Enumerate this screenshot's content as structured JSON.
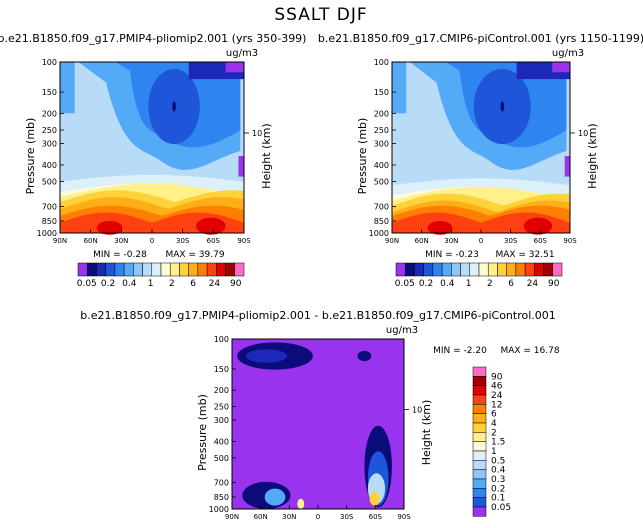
{
  "figure": {
    "title": "SSALT DJF",
    "units": "ug/m3",
    "y_axis_label": "Pressure (mb)",
    "right_axis_label": "Height (km)",
    "right_axis_tick": "10"
  },
  "colors": {
    "levels": [
      "#9933ee",
      "#0b0b7a",
      "#1c28b8",
      "#1f55d8",
      "#2f85f0",
      "#55aaf8",
      "#8fc5f8",
      "#b8dcf8",
      "#dcf0fa",
      "#fbfbd6",
      "#fff08a",
      "#ffd23a",
      "#ffae18",
      "#ff8000",
      "#ff4010",
      "#e00000",
      "#a00000",
      "#ff69c8"
    ]
  },
  "chart_data": [
    {
      "type": "contour",
      "panel": "top-left",
      "title": "b.e21.B1850.f09_g17.PMIP4-pliomip2.001 (yrs 350-399)",
      "units": "ug/m3",
      "ylabel": "Pressure (mb)",
      "right_label": "Height (km)",
      "x_ticks": [
        "90N",
        "60N",
        "30N",
        "0",
        "30S",
        "60S",
        "90S"
      ],
      "y_ticks": [
        "100",
        "150",
        "200",
        "250",
        "300",
        "400",
        "500",
        "700",
        "850",
        "1000"
      ],
      "right_ticks": [
        "10"
      ],
      "min_label": "MIN = -0.28",
      "max_label": "MAX = 39.79",
      "min": -0.28,
      "max": 39.79,
      "colorbar_labels": [
        "0.05",
        "0.2",
        "0.4",
        "1",
        "2",
        "6",
        "24",
        "90"
      ]
    },
    {
      "type": "contour",
      "panel": "top-right",
      "title": "b.e21.B1850.f09_g17.CMIP6-piControl.001 (yrs 1150-1199)",
      "units": "ug/m3",
      "ylabel": "Pressure (mb)",
      "right_label": "Height (km)",
      "x_ticks": [
        "90N",
        "60N",
        "30N",
        "0",
        "30S",
        "60S",
        "90S"
      ],
      "y_ticks": [
        "100",
        "150",
        "200",
        "250",
        "300",
        "400",
        "500",
        "700",
        "850",
        "1000"
      ],
      "right_ticks": [
        "10"
      ],
      "min_label": "MIN = -0.23",
      "max_label": "MAX = 32.51",
      "min": -0.23,
      "max": 32.51,
      "colorbar_labels": [
        "0.05",
        "0.2",
        "0.4",
        "1",
        "2",
        "6",
        "24",
        "90"
      ]
    },
    {
      "type": "contour",
      "panel": "bottom-difference",
      "title": "b.e21.B1850.f09_g17.PMIP4-pliomip2.001 - b.e21.B1850.f09_g17.CMIP6-piControl.001",
      "units": "ug/m3",
      "ylabel": "Pressure (mb)",
      "right_label": "Height (km)",
      "x_ticks": [
        "90N",
        "60N",
        "30N",
        "0",
        "30S",
        "60S",
        "90S"
      ],
      "y_ticks": [
        "100",
        "150",
        "200",
        "250",
        "300",
        "400",
        "500",
        "700",
        "850",
        "1000"
      ],
      "right_ticks": [
        "10"
      ],
      "min_label": "MIN = -2.20",
      "max_label": "MAX = 16.78",
      "min": -2.2,
      "max": 16.78,
      "colorbar_labels": [
        "90",
        "46",
        "24",
        "12",
        "6",
        "4",
        "2",
        "1.5",
        "1",
        "0.5",
        "0.4",
        "0.3",
        "0.2",
        "0.1",
        "0.05"
      ]
    }
  ]
}
